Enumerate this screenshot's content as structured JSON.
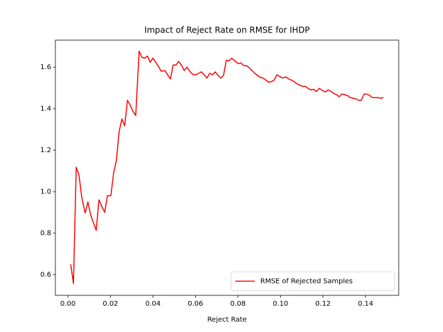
{
  "chart_data": {
    "type": "line",
    "title": "Impact of Reject Rate on RMSE for IHDP",
    "xlabel": "Reject Rate",
    "x": [
      0.0013,
      0.0026,
      0.0039,
      0.0052,
      0.0065,
      0.0081,
      0.0094,
      0.0107,
      0.012,
      0.0133,
      0.0146,
      0.016,
      0.0173,
      0.0186,
      0.0202,
      0.0215,
      0.0228,
      0.0241,
      0.0254,
      0.0267,
      0.028,
      0.0293,
      0.0306,
      0.0319,
      0.0335,
      0.0348,
      0.0361,
      0.0374,
      0.0387,
      0.04,
      0.0413,
      0.0426,
      0.0439,
      0.0456,
      0.0469,
      0.0482,
      0.0495,
      0.0508,
      0.0521,
      0.0534,
      0.0547,
      0.056,
      0.0573,
      0.0589,
      0.0602,
      0.0615,
      0.0628,
      0.0641,
      0.0654,
      0.0667,
      0.068,
      0.0693,
      0.0706,
      0.0719,
      0.0732,
      0.0745,
      0.0758,
      0.0771,
      0.0788,
      0.0801,
      0.0814,
      0.0827,
      0.084,
      0.0853,
      0.0866,
      0.0879,
      0.0892,
      0.0905,
      0.0918,
      0.0931,
      0.0944,
      0.0957,
      0.097,
      0.0983,
      0.0999,
      0.1012,
      0.1025,
      0.1038,
      0.1051,
      0.1064,
      0.1077,
      0.109,
      0.1104,
      0.1117,
      0.113,
      0.1143,
      0.1156,
      0.1169,
      0.1182,
      0.1198,
      0.1211,
      0.1224,
      0.1237,
      0.125,
      0.1263,
      0.1276,
      0.1289,
      0.1302,
      0.1315,
      0.1328,
      0.1341,
      0.1354,
      0.1367,
      0.138,
      0.1393,
      0.1406,
      0.142,
      0.1432,
      0.1445,
      0.1458,
      0.1471,
      0.1484
    ],
    "series": [
      {
        "name": "RMSE of Rejected Samples",
        "color": "#ff0000",
        "values": [
          0.65,
          0.557,
          1.117,
          1.08,
          0.973,
          0.897,
          0.95,
          0.887,
          0.85,
          0.813,
          0.96,
          0.927,
          0.9,
          0.98,
          0.98,
          1.09,
          1.15,
          1.29,
          1.35,
          1.317,
          1.44,
          1.417,
          1.387,
          1.367,
          1.677,
          1.647,
          1.643,
          1.653,
          1.623,
          1.643,
          1.623,
          1.603,
          1.58,
          1.583,
          1.563,
          1.543,
          1.61,
          1.61,
          1.627,
          1.61,
          1.583,
          1.6,
          1.58,
          1.563,
          1.563,
          1.57,
          1.577,
          1.563,
          1.547,
          1.57,
          1.563,
          1.577,
          1.56,
          1.547,
          1.56,
          1.633,
          1.63,
          1.643,
          1.627,
          1.617,
          1.62,
          1.607,
          1.607,
          1.597,
          1.583,
          1.57,
          1.56,
          1.55,
          1.547,
          1.537,
          1.527,
          1.53,
          1.537,
          1.563,
          1.553,
          1.547,
          1.553,
          1.543,
          1.537,
          1.53,
          1.52,
          1.513,
          1.507,
          1.507,
          1.497,
          1.49,
          1.493,
          1.483,
          1.497,
          1.487,
          1.48,
          1.49,
          1.483,
          1.473,
          1.467,
          1.457,
          1.47,
          1.467,
          1.463,
          1.453,
          1.45,
          1.447,
          1.44,
          1.44,
          1.47,
          1.47,
          1.463,
          1.453,
          1.453,
          1.453,
          1.45,
          1.453
        ]
      }
    ],
    "xlim": [
      -0.0059,
      0.1556
    ],
    "ylim": [
      0.5,
      1.73
    ],
    "xticks": [
      {
        "value": 0,
        "label": "0.00"
      },
      0.02,
      0.04,
      0.06,
      0.08,
      {
        "value": 0.1,
        "label": "0.10"
      },
      0.12,
      0.14
    ],
    "yticks": [
      0.6,
      0.8,
      {
        "value": 1,
        "label": "1.0"
      },
      1.2,
      1.4,
      1.6
    ],
    "legend": "lower right"
  }
}
